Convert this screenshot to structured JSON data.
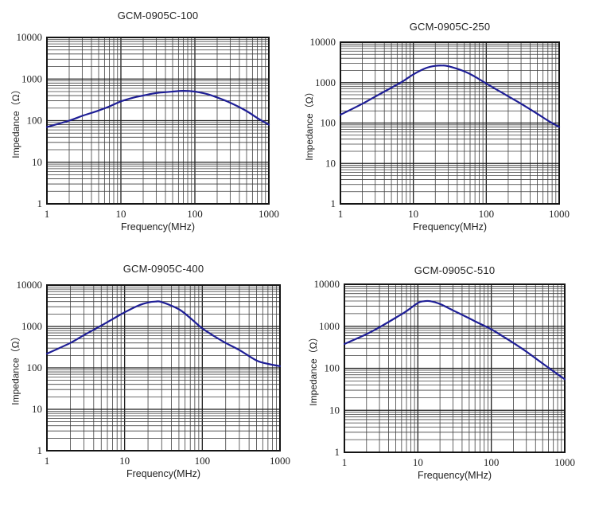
{
  "style": {
    "curve_color": "#1e1e96",
    "minor_grid_color": "#3f3f3f",
    "major_grid_color": "#1f1f1f",
    "border_color": "#141414",
    "tick_text_color": "#1f1f1f",
    "background": "#ffffff"
  },
  "chart_data": [
    {
      "type": "line",
      "title": "GCM-0905C-100",
      "xlabel": "Frequency(MHz)",
      "ylabel": "Impedance（Ω）",
      "xscale": "log",
      "yscale": "log",
      "xlim": [
        1,
        1000
      ],
      "ylim": [
        1,
        10000
      ],
      "x_ticks": [
        "1",
        "10",
        "100",
        "1000"
      ],
      "y_ticks": [
        "1",
        "10",
        "100",
        "1000",
        "10000"
      ],
      "grid": "both",
      "legend": "none",
      "series": [
        {
          "name": "impedance",
          "x": [
            1,
            2,
            3,
            5,
            7,
            10,
            15,
            20,
            30,
            50,
            70,
            100,
            150,
            200,
            300,
            500,
            700,
            1000
          ],
          "y": [
            70,
            100,
            130,
            175,
            220,
            290,
            360,
            400,
            460,
            500,
            520,
            500,
            430,
            360,
            270,
            170,
            115,
            80
          ]
        }
      ]
    },
    {
      "type": "line",
      "title": "GCM-0905C-250",
      "xlabel": "Frequency(MHz)",
      "ylabel": "Impedance（Ω）",
      "xscale": "log",
      "yscale": "log",
      "xlim": [
        1,
        1000
      ],
      "ylim": [
        1,
        10000
      ],
      "x_ticks": [
        "1",
        "10",
        "100",
        "1000"
      ],
      "y_ticks": [
        "1",
        "10",
        "100",
        "1000",
        "10000"
      ],
      "grid": "both",
      "legend": "none",
      "series": [
        {
          "name": "impedance",
          "x": [
            1,
            2,
            3,
            5,
            7,
            10,
            15,
            20,
            25,
            30,
            50,
            70,
            100,
            150,
            200,
            300,
            500,
            700,
            1000
          ],
          "y": [
            160,
            300,
            450,
            750,
            1050,
            1600,
            2300,
            2600,
            2650,
            2550,
            1900,
            1400,
            950,
            620,
            460,
            300,
            170,
            115,
            80
          ]
        }
      ]
    },
    {
      "type": "line",
      "title": "GCM-0905C-400",
      "xlabel": "Frequency(MHz)",
      "ylabel": "Impedance（Ω）",
      "xscale": "log",
      "yscale": "log",
      "xlim": [
        1,
        1000
      ],
      "ylim": [
        1,
        10000
      ],
      "x_ticks": [
        "1",
        "10",
        "100",
        "1000"
      ],
      "y_ticks": [
        "1",
        "10",
        "100",
        "1000",
        "10000"
      ],
      "grid": "both",
      "legend": "none",
      "series": [
        {
          "name": "impedance",
          "x": [
            1,
            2,
            3,
            5,
            7,
            10,
            15,
            20,
            25,
            30,
            50,
            70,
            100,
            150,
            200,
            300,
            500,
            700,
            1000
          ],
          "y": [
            220,
            400,
            620,
            1050,
            1500,
            2200,
            3200,
            3800,
            4000,
            3900,
            2600,
            1600,
            900,
            550,
            400,
            270,
            150,
            125,
            110
          ]
        }
      ]
    },
    {
      "type": "line",
      "title": "GCM-0905C-510",
      "xlabel": "Frequency(MHz)",
      "ylabel": "Impedance（Ω）",
      "xscale": "log",
      "yscale": "log",
      "xlim": [
        1,
        1000
      ],
      "ylim": [
        1,
        10000
      ],
      "x_ticks": [
        "1",
        "10",
        "100",
        "1000"
      ],
      "y_ticks": [
        "1",
        "10",
        "100",
        "1000",
        "10000"
      ],
      "grid": "both",
      "legend": "none",
      "series": [
        {
          "name": "impedance",
          "x": [
            1,
            2,
            3,
            5,
            7,
            10,
            12,
            15,
            20,
            30,
            50,
            70,
            100,
            150,
            200,
            300,
            500,
            700,
            1000
          ],
          "y": [
            380,
            650,
            950,
            1600,
            2300,
            3600,
            3950,
            3950,
            3400,
            2400,
            1550,
            1150,
            850,
            550,
            400,
            250,
            130,
            85,
            55
          ]
        }
      ]
    }
  ]
}
